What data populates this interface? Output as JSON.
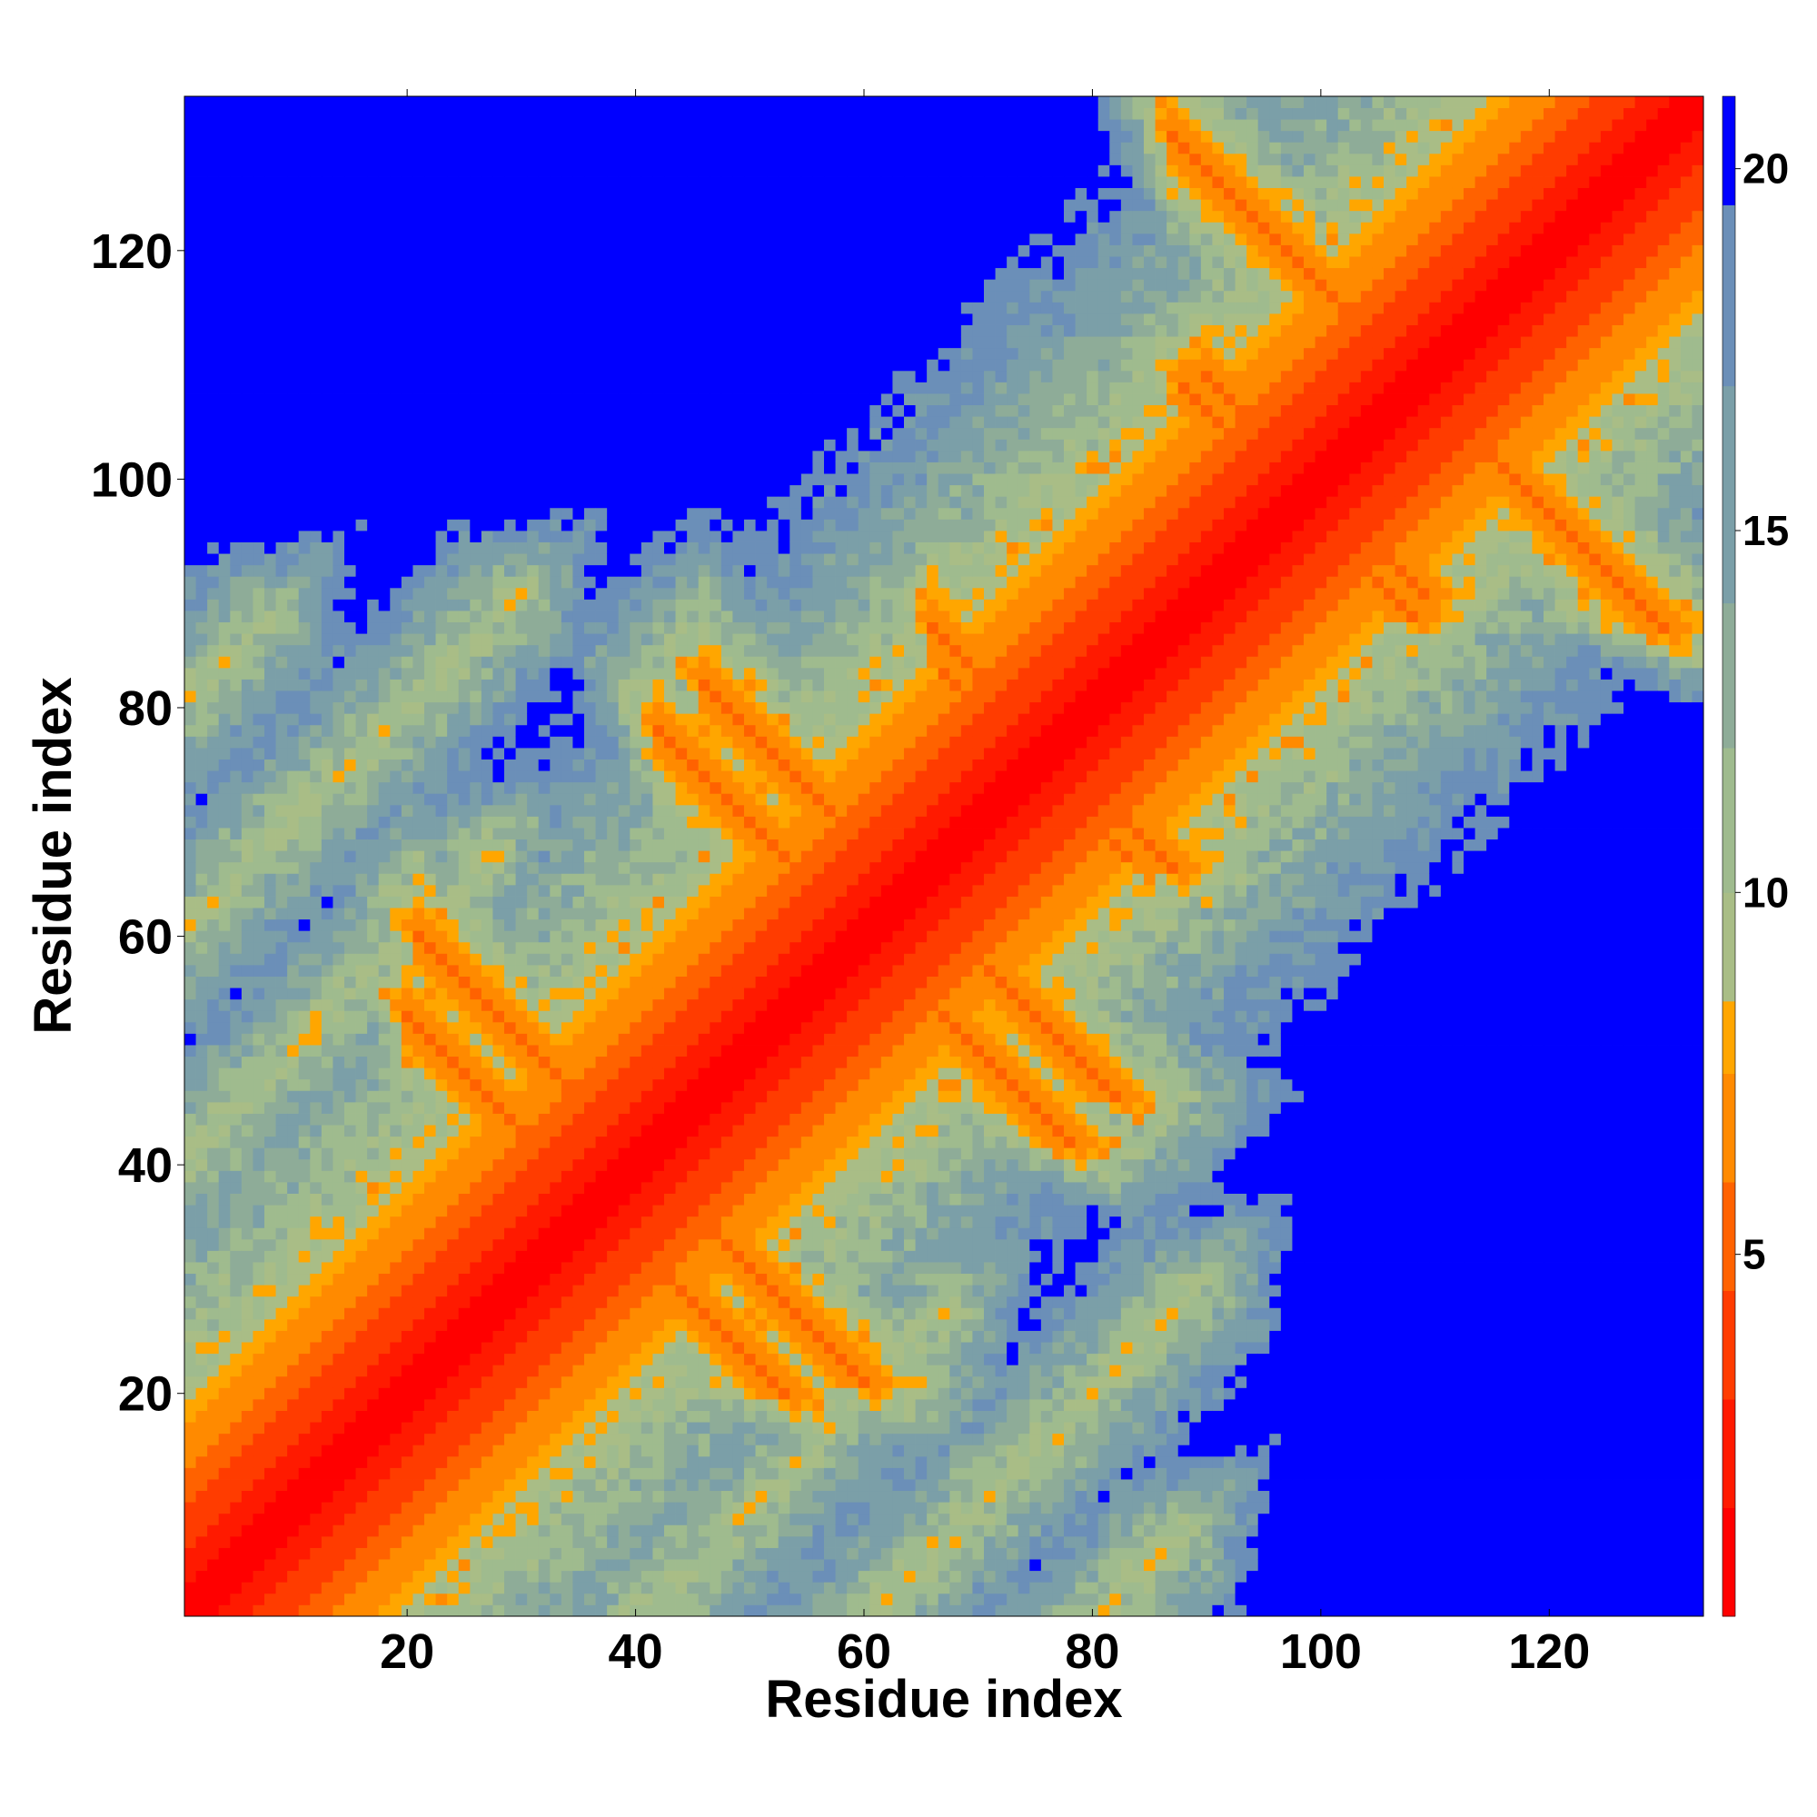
{
  "chart_data": {
    "type": "heatmap",
    "title": "",
    "xlabel": "Residue index",
    "ylabel": "Residue index",
    "n_residues": 133,
    "xlim": [
      1,
      133
    ],
    "ylim": [
      1,
      133
    ],
    "x_ticks": [
      20,
      40,
      60,
      80,
      100,
      120
    ],
    "y_ticks": [
      20,
      40,
      60,
      80,
      100,
      120
    ],
    "colorbar": {
      "range": [
        0,
        21
      ],
      "ticks": [
        5,
        10,
        15,
        20
      ],
      "levels": [
        {
          "max": 1.5,
          "color": "#ff0000"
        },
        {
          "max": 3,
          "color": "#ff1a00"
        },
        {
          "max": 4.5,
          "color": "#ff3c00"
        },
        {
          "max": 6,
          "color": "#ff6200"
        },
        {
          "max": 7.5,
          "color": "#ff8a00"
        },
        {
          "max": 8.5,
          "color": "#ffa600"
        },
        {
          "max": 10,
          "color": "#a9bd86"
        },
        {
          "max": 12,
          "color": "#9fbb8e"
        },
        {
          "max": 14,
          "color": "#8eac98"
        },
        {
          "max": 17,
          "color": "#7b9fa8"
        },
        {
          "max": 19.5,
          "color": "#6b8fb8"
        },
        {
          "max": 100,
          "color": "#0000ff"
        }
      ]
    },
    "values_description_note": null,
    "contact_bands": {
      "antidiagonal": [
        {
          "sum": 81,
          "from": 21,
          "to": 60
        },
        {
          "sum": 128,
          "from": 46,
          "to": 82
        },
        {
          "sum": 131,
          "from": 66,
          "to": 65
        },
        {
          "sum": 150,
          "from": 67,
          "to": 83
        },
        {
          "sum": 153,
          "from": 87,
          "to": 66
        },
        {
          "sum": 196,
          "from": 88,
          "to": 108
        },
        {
          "sum": 199,
          "from": 109,
          "to": 90
        },
        {
          "sum": 217,
          "from": 87,
          "to": 130
        },
        {
          "sum": 220,
          "from": 110,
          "to": 110
        },
        {
          "sum": 73,
          "from": 20,
          "to": 53
        },
        {
          "sum": 120,
          "from": 42,
          "to": 78
        }
      ],
      "parallel": [
        {
          "offset": 40,
          "from": 20,
          "to": 48
        },
        {
          "offset": -40,
          "from": 20,
          "to": 48
        },
        {
          "offset": 60,
          "from": 22,
          "to": 60
        },
        {
          "offset": -60,
          "from": 22,
          "to": 60
        },
        {
          "offset": 80,
          "from": 35,
          "to": 48
        },
        {
          "offset": -80,
          "from": 35,
          "to": 48
        }
      ]
    }
  }
}
